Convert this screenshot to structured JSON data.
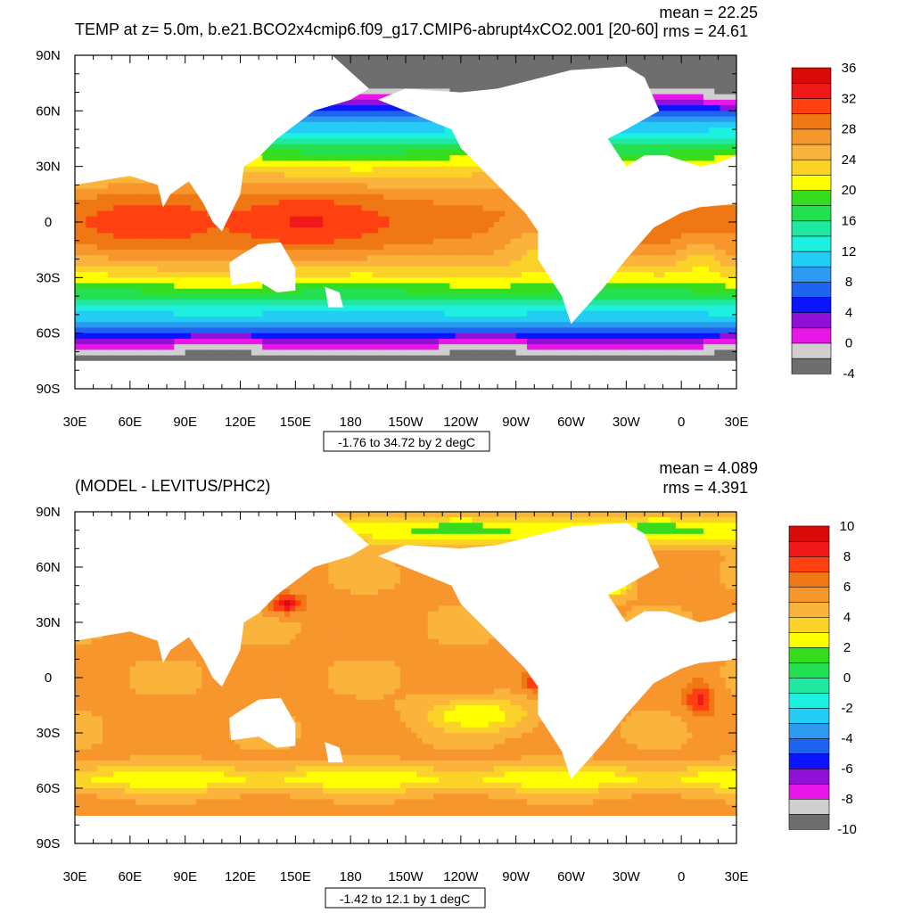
{
  "chart_data": [
    {
      "type": "heatmap",
      "title": "TEMP at z=   5.0m, b.e21.BCO2x4cmip6.f09_g17.CMIP6-abrupt4xCO2.001 [20-60]",
      "stats": {
        "mean": "mean = 22.25",
        "rms": "rms = 24.61"
      },
      "x_ticks": [
        "30E",
        "60E",
        "90E",
        "120E",
        "150E",
        "180",
        "150W",
        "120W",
        "90W",
        "60W",
        "30W",
        "0",
        "30E"
      ],
      "y_ticks": [
        "90N",
        "60N",
        "30N",
        "0",
        "30S",
        "60S",
        "90S"
      ],
      "xlim": [
        30,
        390
      ],
      "ylim": [
        -90,
        90
      ],
      "range_label": "-1.76 to 34.72 by 2 degC",
      "colorbar": {
        "levels": [
          -4,
          -2,
          0,
          2,
          4,
          6,
          8,
          10,
          12,
          14,
          16,
          18,
          20,
          22,
          24,
          26,
          28,
          30,
          32,
          34,
          36
        ],
        "labels": [
          "36",
          "32",
          "28",
          "24",
          "20",
          "16",
          "12",
          "8",
          "4",
          "0",
          "-4"
        ],
        "colors": [
          "#6e6e6e",
          "#cfcfcf",
          "#e817e8",
          "#9010d8",
          "#0a14ff",
          "#1e64f0",
          "#2b9af0",
          "#22ccf4",
          "#1ef0e0",
          "#20e8a0",
          "#22e050",
          "#36dc1e",
          "#ffff00",
          "#fad228",
          "#fab43c",
          "#f8962e",
          "#f07814",
          "#ff4010",
          "#f01818",
          "#d80a0a"
        ]
      },
      "field": "abs_temperature"
    },
    {
      "type": "heatmap",
      "title": "(MODEL - LEVITUS/PHC2)",
      "stats": {
        "mean": "mean = 4.089",
        "rms": "rms = 4.391"
      },
      "x_ticks": [
        "30E",
        "60E",
        "90E",
        "120E",
        "150E",
        "180",
        "150W",
        "120W",
        "90W",
        "60W",
        "30W",
        "0",
        "30E"
      ],
      "y_ticks": [
        "90N",
        "60N",
        "30N",
        "0",
        "30S",
        "60S",
        "90S"
      ],
      "xlim": [
        30,
        390
      ],
      "ylim": [
        -90,
        90
      ],
      "range_label": "-1.42 to 12.1 by 1 degC",
      "colorbar": {
        "levels": [
          -10,
          -9,
          -8,
          -7,
          -6,
          -5,
          -4,
          -3,
          -2,
          -1,
          0,
          1,
          2,
          3,
          4,
          5,
          6,
          7,
          8,
          9,
          10
        ],
        "labels": [
          "10",
          "8",
          "6",
          "4",
          "2",
          "0",
          "-2",
          "-4",
          "-6",
          "-8",
          "-10"
        ],
        "colors": [
          "#6e6e6e",
          "#cfcfcf",
          "#e817e8",
          "#9010d8",
          "#0a14ff",
          "#1e64f0",
          "#2b9af0",
          "#22ccf4",
          "#1ef0e0",
          "#20e8a0",
          "#22e050",
          "#36dc1e",
          "#ffff00",
          "#fad228",
          "#fab43c",
          "#f8962e",
          "#f07814",
          "#ff4010",
          "#f01818",
          "#d80a0a"
        ]
      },
      "field": "anomaly"
    }
  ]
}
